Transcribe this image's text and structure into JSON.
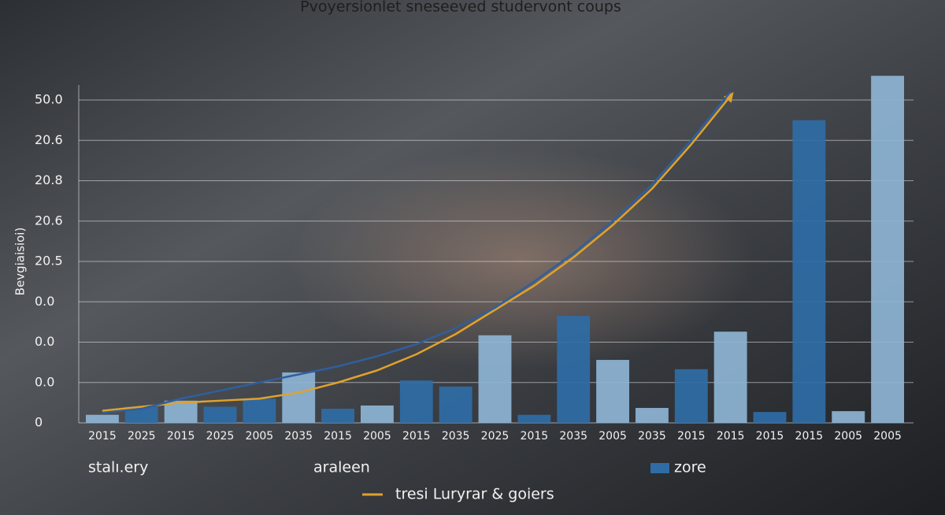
{
  "chart_data": {
    "type": "combo",
    "title": "Pvoyersionlet snesееved studervont coups",
    "y_label": "Bevgiaisioi)",
    "annotations": [
      "stalı.ery",
      "araleen"
    ],
    "categories": [
      "2015",
      "2025",
      "2015",
      "2025",
      "2005",
      "2035",
      "2015",
      "2005",
      "2015",
      "2035",
      "2025",
      "2015",
      "2035",
      "2005",
      "2035",
      "2015",
      "2015",
      "2015",
      "2015",
      "2005",
      "2005"
    ],
    "ylim": [
      0,
      9
    ],
    "yticks": [
      {
        "value": 0,
        "label": "0"
      },
      {
        "value": 1,
        "label": "0.0"
      },
      {
        "value": 2,
        "label": "0.0"
      },
      {
        "value": 3,
        "label": "0.0"
      },
      {
        "value": 4,
        "label": "20.5"
      },
      {
        "value": 5,
        "label": "20.6"
      },
      {
        "value": 6,
        "label": "20.8"
      },
      {
        "value": 7,
        "label": "20.6"
      },
      {
        "value": 8,
        "label": "50.0"
      }
    ],
    "grid": true,
    "series": [
      {
        "type": "bar",
        "name": "zore",
        "color": "#2f6ca6",
        "colors": [
          "#8db4d4",
          "#2f6ca6",
          "#8db4d4",
          "#2f6ca6",
          "#2f6ca6",
          "#8db4d4",
          "#2f6ca6",
          "#8db4d4",
          "#2f6ca6",
          "#2f6ca6",
          "#8db4d4",
          "#2f6ca6",
          "#2f6ca6",
          "#8db4d4",
          "#8db4d4",
          "#2f6ca6",
          "#8db4d4",
          "#2f6ca6",
          "#2f6ca6",
          "#8db4d4",
          "#8db4d4"
        ],
        "values": [
          0.2,
          0.4,
          0.55,
          0.4,
          0.6,
          1.25,
          0.35,
          0.43,
          1.05,
          0.9,
          2.17,
          0.2,
          2.65,
          1.56,
          0.37,
          1.33,
          2.26,
          0.27,
          7.5,
          0.29,
          8.6
        ]
      },
      {
        "type": "line",
        "name": "tresi Luryrar & goiers",
        "color": "#e0a22c",
        "values": [
          0.3,
          0.4,
          0.5,
          0.55,
          0.6,
          0.75,
          1.0,
          1.3,
          1.7,
          2.2,
          2.8,
          3.4,
          4.1,
          4.9,
          5.8,
          6.9,
          8.1,
          null,
          null,
          null,
          null
        ]
      },
      {
        "type": "line",
        "color": "#2f5f9e",
        "values": [
          0.25,
          0.35,
          0.6,
          0.8,
          1.0,
          1.2,
          1.4,
          1.65,
          1.95,
          2.35,
          2.85,
          3.5,
          4.2,
          5.0,
          5.9,
          7.0,
          8.2,
          null,
          null,
          null,
          null
        ]
      }
    ]
  }
}
